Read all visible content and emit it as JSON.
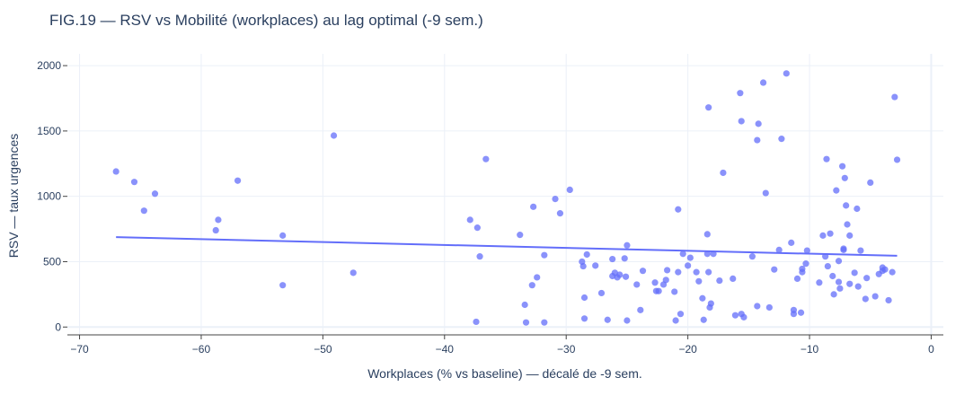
{
  "chart_data": {
    "type": "scatter",
    "title": "FIG.19 — RSV vs Mobilité (workplaces) au lag optimal (-9 sem.)",
    "xlabel": "Workplaces (% vs baseline) — décalé de -9 sem.",
    "ylabel": "RSV — taux urgences",
    "xlim": [
      -71,
      1
    ],
    "ylim": [
      -60,
      2090
    ],
    "xticks": [
      -70,
      -60,
      -50,
      -40,
      -30,
      -20,
      -10,
      0
    ],
    "xtick_labels": [
      "−70",
      "−60",
      "−50",
      "−40",
      "−30",
      "−20",
      "−10",
      "0"
    ],
    "yticks": [
      0,
      500,
      1000,
      1500,
      2000
    ],
    "ytick_labels": [
      "0",
      "500",
      "1000",
      "1500",
      "2000"
    ],
    "grid": true,
    "legend": "none",
    "marker_color": "#636efa",
    "line_color": "#636efa",
    "series": [
      {
        "kind": "points",
        "points": [
          [
            -67.0,
            1190
          ],
          [
            -65.5,
            1110
          ],
          [
            -63.8,
            1020
          ],
          [
            -64.7,
            890
          ],
          [
            -58.6,
            820
          ],
          [
            -58.8,
            740
          ],
          [
            -57.0,
            1120
          ],
          [
            -53.3,
            700
          ],
          [
            -53.3,
            320
          ],
          [
            -49.1,
            1465
          ],
          [
            -47.5,
            415
          ],
          [
            -37.9,
            820
          ],
          [
            -37.3,
            760
          ],
          [
            -37.1,
            540
          ],
          [
            -37.4,
            40
          ],
          [
            -36.6,
            1285
          ],
          [
            -33.8,
            705
          ],
          [
            -33.4,
            170
          ],
          [
            -33.3,
            35
          ],
          [
            -32.7,
            920
          ],
          [
            -32.8,
            320
          ],
          [
            -32.4,
            380
          ],
          [
            -31.8,
            550
          ],
          [
            -31.8,
            35
          ],
          [
            -30.9,
            980
          ],
          [
            -30.5,
            870
          ],
          [
            -29.7,
            1050
          ],
          [
            -28.7,
            500
          ],
          [
            -28.6,
            465
          ],
          [
            -28.3,
            555
          ],
          [
            -28.5,
            225
          ],
          [
            -28.5,
            65
          ],
          [
            -27.6,
            470
          ],
          [
            -27.1,
            260
          ],
          [
            -26.6,
            55
          ],
          [
            -26.2,
            520
          ],
          [
            -26.2,
            390
          ],
          [
            -26.0,
            415
          ],
          [
            -25.8,
            380
          ],
          [
            -25.6,
            400
          ],
          [
            -25.0,
            625
          ],
          [
            -25.2,
            525
          ],
          [
            -25.1,
            385
          ],
          [
            -25.0,
            50
          ],
          [
            -24.2,
            325
          ],
          [
            -23.9,
            130
          ],
          [
            -23.7,
            430
          ],
          [
            -22.7,
            340
          ],
          [
            -22.6,
            275
          ],
          [
            -22.4,
            275
          ],
          [
            -22.0,
            325
          ],
          [
            -21.8,
            360
          ],
          [
            -21.7,
            435
          ],
          [
            -21.0,
            50
          ],
          [
            -21.1,
            270
          ],
          [
            -20.8,
            900
          ],
          [
            -20.8,
            420
          ],
          [
            -20.6,
            100
          ],
          [
            -20.4,
            560
          ],
          [
            -20.0,
            470
          ],
          [
            -19.8,
            530
          ],
          [
            -19.3,
            420
          ],
          [
            -19.1,
            350
          ],
          [
            -18.8,
            220
          ],
          [
            -18.7,
            55
          ],
          [
            -18.3,
            1680
          ],
          [
            -18.4,
            710
          ],
          [
            -18.4,
            560
          ],
          [
            -18.3,
            420
          ],
          [
            -18.2,
            150
          ],
          [
            -18.1,
            180
          ],
          [
            -17.9,
            560
          ],
          [
            -17.1,
            1180
          ],
          [
            -17.4,
            355
          ],
          [
            -16.3,
            370
          ],
          [
            -16.1,
            90
          ],
          [
            -15.7,
            1790
          ],
          [
            -15.6,
            1575
          ],
          [
            -15.6,
            100
          ],
          [
            -15.4,
            75
          ],
          [
            -14.7,
            540
          ],
          [
            -14.2,
            1555
          ],
          [
            -14.3,
            1430
          ],
          [
            -14.3,
            160
          ],
          [
            -13.8,
            1870
          ],
          [
            -13.6,
            1025
          ],
          [
            -13.3,
            150
          ],
          [
            -12.9,
            440
          ],
          [
            -12.5,
            590
          ],
          [
            -12.3,
            1440
          ],
          [
            -11.9,
            1940
          ],
          [
            -11.5,
            645
          ],
          [
            -11.3,
            130
          ],
          [
            -11.3,
            100
          ],
          [
            -11.0,
            370
          ],
          [
            -10.7,
            110
          ],
          [
            -10.6,
            445
          ],
          [
            -10.6,
            420
          ],
          [
            -10.3,
            485
          ],
          [
            -10.2,
            585
          ],
          [
            -9.2,
            340
          ],
          [
            -8.9,
            700
          ],
          [
            -8.6,
            1285
          ],
          [
            -8.7,
            540
          ],
          [
            -8.5,
            465
          ],
          [
            -8.3,
            715
          ],
          [
            -8.1,
            390
          ],
          [
            -8.0,
            250
          ],
          [
            -7.8,
            1045
          ],
          [
            -7.6,
            505
          ],
          [
            -7.6,
            345
          ],
          [
            -7.5,
            295
          ],
          [
            -7.3,
            1230
          ],
          [
            -7.2,
            600
          ],
          [
            -7.2,
            590
          ],
          [
            -7.1,
            1140
          ],
          [
            -7.0,
            930
          ],
          [
            -6.9,
            785
          ],
          [
            -6.7,
            700
          ],
          [
            -6.7,
            330
          ],
          [
            -6.3,
            415
          ],
          [
            -6.1,
            905
          ],
          [
            -6.0,
            310
          ],
          [
            -5.8,
            585
          ],
          [
            -5.4,
            215
          ],
          [
            -5.3,
            375
          ],
          [
            -5.0,
            1105
          ],
          [
            -4.6,
            235
          ],
          [
            -4.3,
            405
          ],
          [
            -4.0,
            455
          ],
          [
            -4.0,
            430
          ],
          [
            -3.8,
            440
          ],
          [
            -3.5,
            205
          ],
          [
            -3.2,
            420
          ],
          [
            -3.0,
            1760
          ],
          [
            -2.8,
            1280
          ]
        ]
      },
      {
        "kind": "trendline",
        "points": [
          [
            -67.0,
            688
          ],
          [
            -2.8,
            545
          ]
        ]
      }
    ]
  }
}
